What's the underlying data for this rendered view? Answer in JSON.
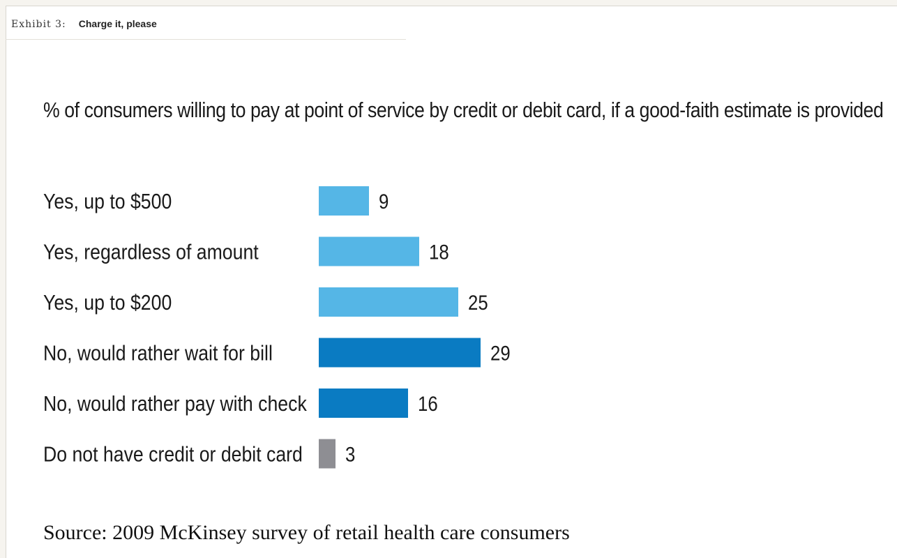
{
  "exhibit": {
    "number": "Exhibit 3:",
    "title": "Charge it, please"
  },
  "source": "Source: 2009 McKinsey survey of retail health care consumers",
  "chart_data": {
    "type": "bar",
    "orientation": "horizontal",
    "title": "% of consumers willing to pay at point of service by credit or debit card, if a good-faith estimate is provided",
    "xlabel": "",
    "ylabel": "",
    "xlim": [
      0,
      29
    ],
    "grid": false,
    "categories": [
      "Yes, up to $500",
      "Yes, regardless of amount",
      "Yes, up to $200",
      "No, would rather wait for bill",
      "No, would rather pay with check",
      "Do not have credit or debit card"
    ],
    "values": [
      9,
      18,
      25,
      29,
      16,
      3
    ],
    "colors": [
      "#55b6e6",
      "#55b6e6",
      "#55b6e6",
      "#0a7bc2",
      "#0a7bc2",
      "#8e8e93"
    ]
  }
}
